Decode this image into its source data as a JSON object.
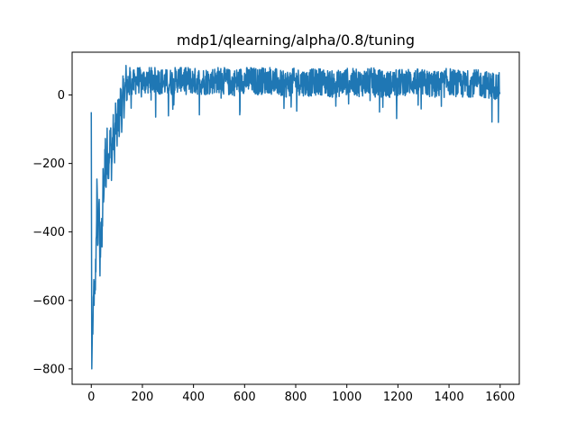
{
  "chart_data": {
    "type": "line",
    "title": "mdp1/qlearning/alpha/0.8/tuning",
    "xlabel": "",
    "ylabel": "",
    "xlim": [
      -75,
      1675
    ],
    "ylim": [
      -845,
      125
    ],
    "xticks": [
      0,
      200,
      400,
      600,
      800,
      1000,
      1200,
      1400,
      1600
    ],
    "xtick_labels": [
      "0",
      "200",
      "400",
      "600",
      "800",
      "1000",
      "1200",
      "1400",
      "1600"
    ],
    "yticks": [
      -800,
      -600,
      -400,
      -200,
      0
    ],
    "ytick_labels": [
      "−800",
      "−600",
      "−400",
      "−200",
      "0"
    ],
    "grid": false,
    "legend": "none",
    "series": [
      {
        "color": "#1f77b4",
        "n_points": 1600,
        "x": [
          0,
          2,
          4,
          8,
          10,
          14,
          18,
          22,
          26,
          30,
          34,
          38,
          42,
          46,
          50,
          54,
          58,
          62,
          66,
          70,
          75,
          80,
          85,
          90,
          95,
          100,
          105,
          110,
          115,
          120,
          125,
          130,
          135,
          140,
          150,
          160,
          180,
          200,
          250,
          300,
          350,
          400,
          450,
          500,
          550,
          600,
          650,
          700,
          750,
          800,
          850,
          900,
          950,
          1000,
          1050,
          1100,
          1150,
          1200,
          1250,
          1300,
          1350,
          1400,
          1450,
          1500,
          1550,
          1599
        ],
        "values": [
          -50,
          -800,
          -700,
          -650,
          -560,
          -620,
          -480,
          -280,
          -430,
          -300,
          -520,
          -350,
          -440,
          -260,
          -320,
          -120,
          -240,
          -150,
          -200,
          -170,
          -120,
          -210,
          -100,
          -160,
          -60,
          -130,
          -40,
          -80,
          -10,
          -60,
          10,
          -20,
          40,
          20,
          50,
          30,
          45,
          40,
          45,
          35,
          50,
          40,
          40,
          45,
          35,
          45,
          40,
          45,
          30,
          40,
          35,
          40,
          30,
          40,
          35,
          40,
          30,
          35,
          40,
          35,
          30,
          40,
          30,
          35,
          30,
          25
        ],
        "noise_band": {
          "before_150": 60,
          "after_150": 40,
          "upper": 80,
          "lower": -80
        }
      }
    ]
  }
}
